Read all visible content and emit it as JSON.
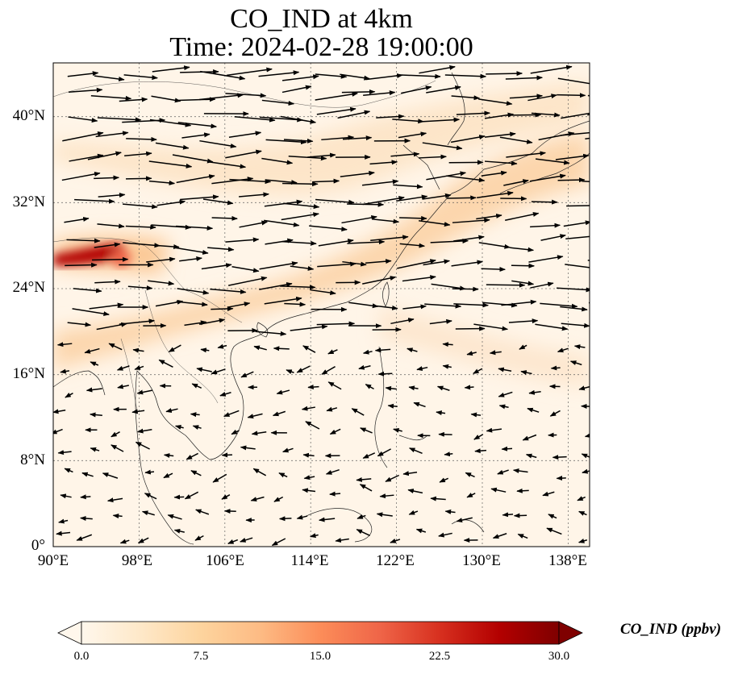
{
  "title": {
    "line1": "CO_IND at 4km",
    "line2": "Time: 2024-02-28 19:00:00"
  },
  "map": {
    "lon_range": [
      90,
      140
    ],
    "lat_range": [
      0,
      45
    ],
    "xticks": [
      "90°E",
      "98°E",
      "106°E",
      "114°E",
      "122°E",
      "130°E",
      "138°E"
    ],
    "yticks": [
      "0°",
      "8°N",
      "16°N",
      "24°N",
      "32°N",
      "40°N"
    ],
    "gridlines": true,
    "wind_vectors": true
  },
  "colorbar": {
    "label": "CO_IND (ppbv)",
    "ticks": [
      "0.0",
      "7.5",
      "15.0",
      "22.5",
      "30.0"
    ],
    "range": [
      0,
      30
    ],
    "colormap": "OrRd",
    "extend": "both",
    "colors": [
      "#fff7ec",
      "#fee8c8",
      "#fdd49e",
      "#fdbb84",
      "#fc8d59",
      "#ef6548",
      "#d7301f",
      "#b30000",
      "#7f0000"
    ]
  }
}
